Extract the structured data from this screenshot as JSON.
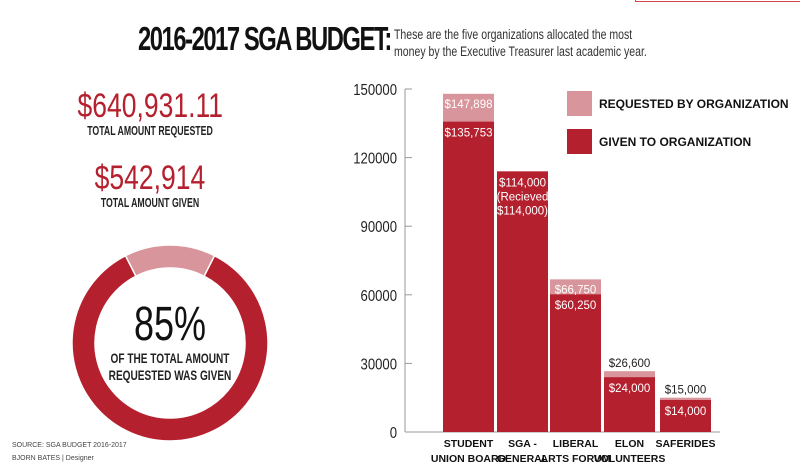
{
  "header": {
    "title": "2016-2017 SGA BUDGET:",
    "subtitle_line1": "These are the five organizations allocated the most",
    "subtitle_line2": "money by the Executive Treasurer last academic year."
  },
  "stats": {
    "requested_value": "$640,931.11",
    "requested_label": "TOTAL AMOUNT REQUESTED",
    "given_value": "$542,914",
    "given_label": "TOTAL AMOUNT GIVEN"
  },
  "donut": {
    "percent_text": "85%",
    "percent_value": 85,
    "line1": "OF THE TOTAL AMOUNT",
    "line2": "REQUESTED WAS GIVEN"
  },
  "footer": {
    "source": "SOURCE: SGA BUDGET 2016-2017",
    "credit": "BJORN BATES | Designer"
  },
  "colors": {
    "given": "#b5202e",
    "requested": "#d9959c"
  },
  "chart_data": {
    "type": "bar",
    "stacked": "overlay",
    "title": "2016-2017 SGA BUDGET",
    "xlabel": "",
    "ylabel": "",
    "ylim": [
      0,
      150000
    ],
    "yticks": [
      0,
      30000,
      60000,
      90000,
      120000,
      150000
    ],
    "yticks_labels": [
      "0",
      "30000",
      "60000",
      "90000",
      "120000",
      "150000"
    ],
    "grid": false,
    "legend_position": "top-right",
    "categories": [
      [
        "STUDENT",
        "UNION BOARD"
      ],
      [
        "SGA -",
        "GENERAL"
      ],
      [
        "LIBERAL",
        "ARTS FORUM"
      ],
      [
        "ELON",
        "VOLUNTEERS"
      ],
      [
        "SAFERIDES"
      ]
    ],
    "series": [
      {
        "name": "REQUESTED BY ORGANIZATION",
        "values": [
          147898,
          114000,
          66750,
          26600,
          15000
        ],
        "labels": [
          "$147,898",
          "",
          "$66,750",
          "$26,600",
          "$15,000"
        ]
      },
      {
        "name": "GIVEN TO ORGANIZATION",
        "values": [
          135753,
          114000,
          60250,
          24000,
          14000
        ],
        "labels": [
          [
            "$135,753"
          ],
          [
            "$114,000",
            "(Recieved",
            "$114,000)"
          ],
          [
            "$60,250"
          ],
          [
            "$24,000"
          ],
          [
            "$14,000"
          ]
        ]
      }
    ]
  }
}
